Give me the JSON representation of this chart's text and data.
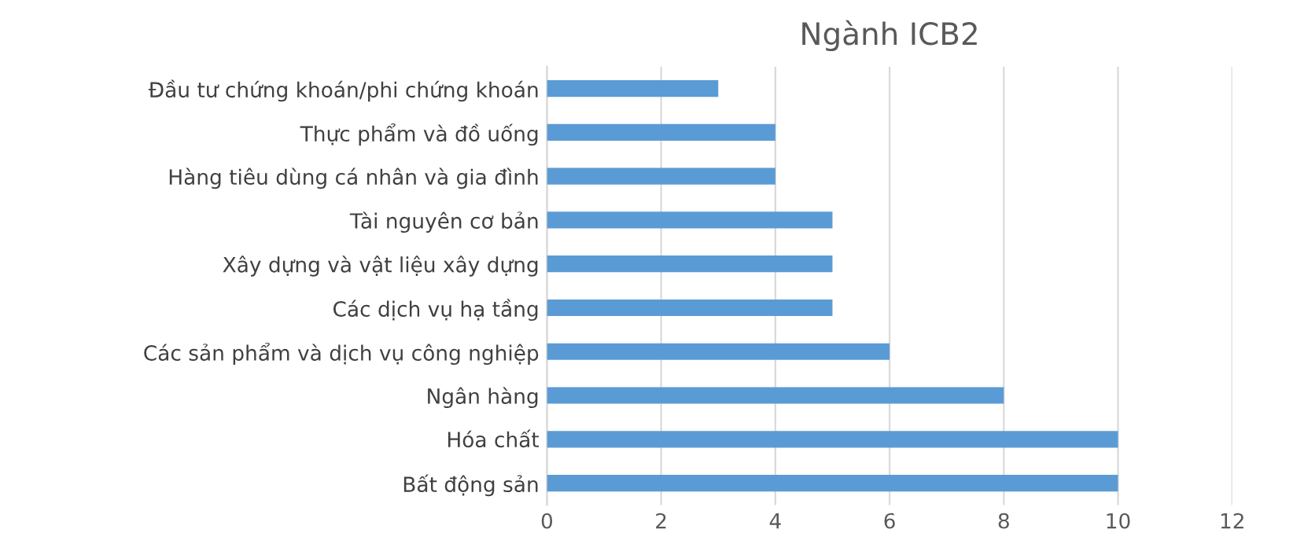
{
  "chart_data": {
    "type": "bar",
    "title": "Ngành ICB2",
    "orientation": "horizontal",
    "categories": [
      "Đầu tư chứng khoán/phi chứng khoán",
      "Thực phẩm và đồ uống",
      "Hàng tiêu dùng cá nhân và gia đình",
      "Tài nguyên cơ bản",
      "Xây dựng và vật liệu xây dựng",
      "Các dịch vụ hạ tầng",
      "Các sản phẩm và dịch vụ công nghiệp",
      "Ngân hàng",
      "Hóa chất",
      "Bất động sản"
    ],
    "values": [
      3,
      4,
      4,
      5,
      5,
      5,
      6,
      8,
      10,
      10
    ],
    "color": "#5b9bd5",
    "xlim": [
      0,
      12
    ],
    "xticks": [
      0,
      2,
      4,
      6,
      8,
      10,
      12
    ],
    "grid": "x",
    "legend": false
  }
}
